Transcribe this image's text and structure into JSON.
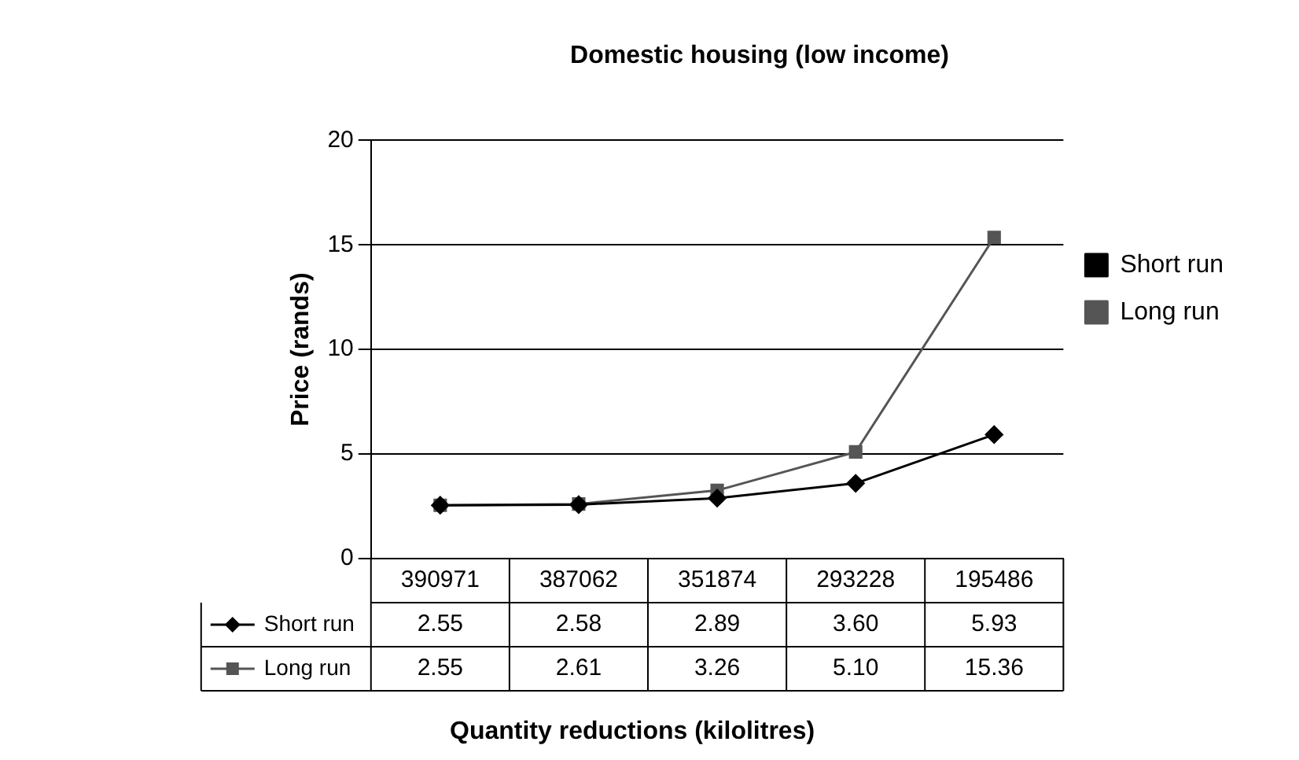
{
  "chart_data": {
    "type": "line",
    "title": "Domestic housing (low income)",
    "xlabel": "Quantity reductions (kilolitres)",
    "ylabel": "Price (rands)",
    "categories": [
      "390971",
      "387062",
      "351874",
      "293228",
      "195486"
    ],
    "series": [
      {
        "name": "Short run",
        "color": "#000000",
        "marker": "diamond",
        "values": [
          2.55,
          2.58,
          2.89,
          3.6,
          5.93
        ],
        "value_labels": [
          "2.55",
          "2.58",
          "2.89",
          "3.60",
          "5.93"
        ]
      },
      {
        "name": "Long run",
        "color": "#555555",
        "marker": "square",
        "values": [
          2.55,
          2.61,
          3.26,
          5.1,
          15.36
        ],
        "value_labels": [
          "2.55",
          "2.61",
          "3.26",
          "5.10",
          "15.36"
        ]
      }
    ],
    "ylim": [
      0,
      20
    ],
    "yticks": [
      0,
      5,
      10,
      15,
      20
    ],
    "grid": "y",
    "legend": "right"
  }
}
